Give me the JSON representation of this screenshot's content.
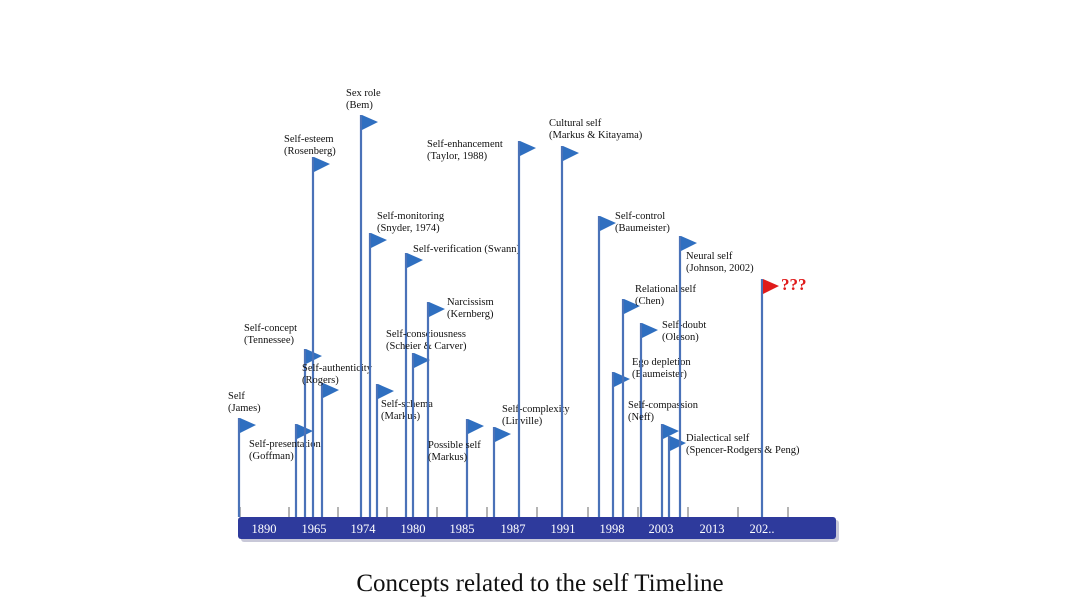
{
  "caption": "Concepts related to the self Timeline",
  "colors": {
    "pole": "#4a72b8",
    "flag": "#2f6fc0",
    "highlight_flag": "#e01b1b",
    "axis_bar": "#2e3a9c",
    "axis_text": "#ffffff",
    "tick": "#9a9a9a"
  },
  "axis_labels": [
    "1890",
    "1965",
    "1974",
    "1980",
    "1985",
    "1987",
    "1991",
    "1998",
    "2003",
    "2013",
    "202.."
  ],
  "concepts": [
    {
      "lines": [
        "Self",
        "(James)"
      ]
    },
    {
      "lines": [
        "Self-presentation",
        "(Goffman)"
      ]
    },
    {
      "lines": [
        "Self-concept",
        "(Tennessee)"
      ]
    },
    {
      "lines": [
        "Self-esteem",
        "(Rosenberg)"
      ]
    },
    {
      "lines": [
        "Self-authenticity",
        "(Rogers)"
      ]
    },
    {
      "lines": [
        "Sex role",
        "(Bem)"
      ]
    },
    {
      "lines": [
        "Self-monitoring",
        "(Snyder, 1974)"
      ]
    },
    {
      "lines": [
        "Self-schema",
        "(Markus)"
      ]
    },
    {
      "lines": [
        "Self-verification  (Swann)"
      ]
    },
    {
      "lines": [
        "Self-consciousness",
        "(Scheier & Carver)"
      ]
    },
    {
      "lines": [
        "Narcissism",
        "(Kernberg)"
      ]
    },
    {
      "lines": [
        "Possible self",
        "(Markus)"
      ]
    },
    {
      "lines": [
        "Self-complexity",
        "(Linville)"
      ]
    },
    {
      "lines": [
        "Self-enhancement",
        "(Taylor, 1988)"
      ]
    },
    {
      "lines": [
        "Cultural self",
        "(Markus & Kitayama)"
      ]
    },
    {
      "lines": [
        "Self-control",
        "(Baumeister)"
      ]
    },
    {
      "lines": [
        "Ego depletion",
        "(Baumeister)"
      ]
    },
    {
      "lines": [
        "Relational self",
        "(Chen)"
      ]
    },
    {
      "lines": [
        "Self-doubt",
        "(Oleson)"
      ]
    },
    {
      "lines": [
        "Self-compassion",
        "(Neff)"
      ]
    },
    {
      "lines": [
        "Dialectical self",
        "(Spencer-Rodgers & Peng)"
      ]
    },
    {
      "lines": [
        "Neural self",
        "(Johnson, 2002)"
      ]
    },
    {
      "lines": [
        "???"
      ],
      "highlight": true
    }
  ]
}
